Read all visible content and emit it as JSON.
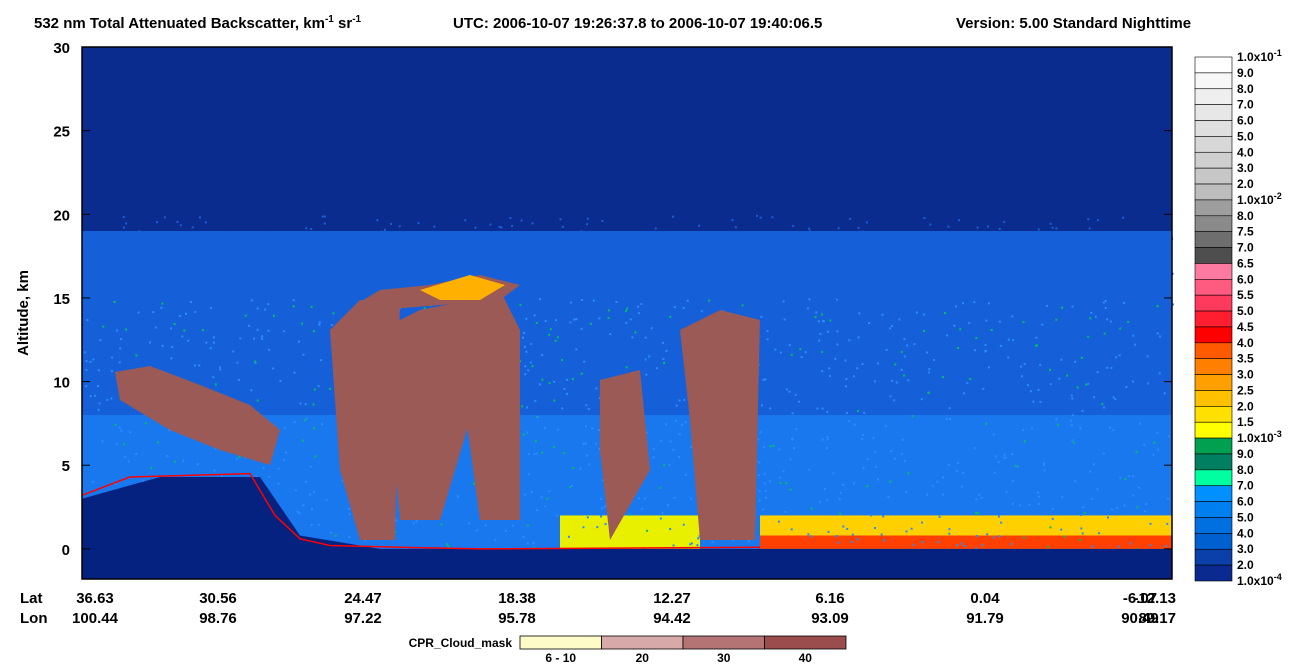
{
  "chart_data": {
    "type": "curtain",
    "title": {
      "parts": [
        "532 nm Total Attenuated Backscatter, km",
        "-1",
        " sr",
        "-1"
      ],
      "utc": "UTC:  2006-10-07 19:26:37.8  to  2006-10-07 19:40:06.5",
      "version": "Version: 5.00  Standard  Nighttime"
    },
    "y_label": "Altitude, km",
    "ylim": [
      -1.8,
      30
    ],
    "yticks": [
      0,
      5,
      10,
      15,
      20,
      25,
      30
    ],
    "x_row_labels": [
      "Lat",
      "Lon"
    ],
    "lat": [
      "36.63",
      "30.56",
      "24.47",
      "18.38",
      "12.27",
      "6.16",
      "0.04",
      "-6.07",
      "-12.13"
    ],
    "lon": [
      "100.44",
      "98.76",
      "97.22",
      "95.78",
      "94.42",
      "93.09",
      "91.79",
      "90.49",
      "89.17"
    ],
    "colorbar": [
      {
        "mantissa": "1.0x10",
        "exp": "-1",
        "color": "#ffffff"
      },
      {
        "mantissa": "9.0",
        "color": "#f7f7f7"
      },
      {
        "mantissa": "8.0",
        "color": "#efefef"
      },
      {
        "mantissa": "7.0",
        "color": "#e7e7e7"
      },
      {
        "mantissa": "6.0",
        "color": "#dfdfdf"
      },
      {
        "mantissa": "5.0",
        "color": "#d7d7d7"
      },
      {
        "mantissa": "4.0",
        "color": "#cfcfcf"
      },
      {
        "mantissa": "3.0",
        "color": "#c7c7c7"
      },
      {
        "mantissa": "2.0",
        "color": "#bdbdbd"
      },
      {
        "mantissa": "1.0x10",
        "exp": "-2",
        "color": "#9e9e9e"
      },
      {
        "mantissa": "8.0",
        "color": "#8a8a8a"
      },
      {
        "mantissa": "7.5",
        "color": "#6e6e6e"
      },
      {
        "mantissa": "7.0",
        "color": "#4e4e4e"
      },
      {
        "mantissa": "6.5",
        "color": "#ff7aa0"
      },
      {
        "mantissa": "6.0",
        "color": "#ff5a80"
      },
      {
        "mantissa": "5.5",
        "color": "#ff3a5c"
      },
      {
        "mantissa": "5.0",
        "color": "#ff1e30"
      },
      {
        "mantissa": "4.5",
        "color": "#ff0000"
      },
      {
        "mantissa": "4.0",
        "color": "#ff5a00"
      },
      {
        "mantissa": "3.5",
        "color": "#ff8000"
      },
      {
        "mantissa": "3.0",
        "color": "#ffa000"
      },
      {
        "mantissa": "2.5",
        "color": "#ffc000"
      },
      {
        "mantissa": "2.0",
        "color": "#ffe000"
      },
      {
        "mantissa": "1.5",
        "color": "#ffff00"
      },
      {
        "mantissa": "1.0x10",
        "exp": "-3",
        "color": "#00a050"
      },
      {
        "mantissa": "9.0",
        "color": "#008060"
      },
      {
        "mantissa": "8.0",
        "color": "#00ffa0"
      },
      {
        "mantissa": "7.0",
        "color": "#0090ff"
      },
      {
        "mantissa": "6.0",
        "color": "#0080f0"
      },
      {
        "mantissa": "5.0",
        "color": "#0070e0"
      },
      {
        "mantissa": "4.0",
        "color": "#0060d0"
      },
      {
        "mantissa": "3.0",
        "color": "#0a40a8"
      },
      {
        "mantissa": "2.0",
        "color": "#0a2a90"
      },
      {
        "mantissa": "1.0x10",
        "exp": "-4"
      }
    ],
    "cpr_legend": {
      "title": "CPR_Cloud_mask",
      "items": [
        {
          "label": "6 - 10",
          "color": "#fdfcc8"
        },
        {
          "label": "20",
          "color": "#d8a9a9"
        },
        {
          "label": "30",
          "color": "#b57474"
        },
        {
          "label": "40",
          "color": "#9b4d4d"
        }
      ]
    }
  }
}
